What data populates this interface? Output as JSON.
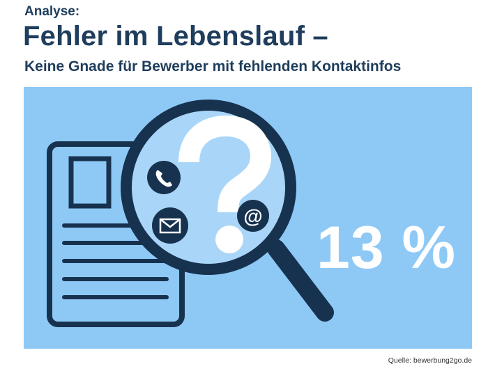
{
  "header": {
    "kicker": "Analyse:",
    "title": "Fehler im Lebenslauf –",
    "subtitle": "Keine Gnade für Bewerber mit fehlenden Kontaktinfos"
  },
  "stat": {
    "value": "13 %"
  },
  "footer": {
    "source": "Quelle: bewerbung2go.de"
  },
  "icons": [
    "document-icon",
    "magnifier-icon",
    "question-mark-icon",
    "phone-icon",
    "envelope-icon",
    "at-sign-icon"
  ],
  "colors": {
    "panel": "#8ec9f6",
    "navy": "#17324f",
    "lens": "#a9d6f8",
    "text": "#1f3d5c"
  }
}
